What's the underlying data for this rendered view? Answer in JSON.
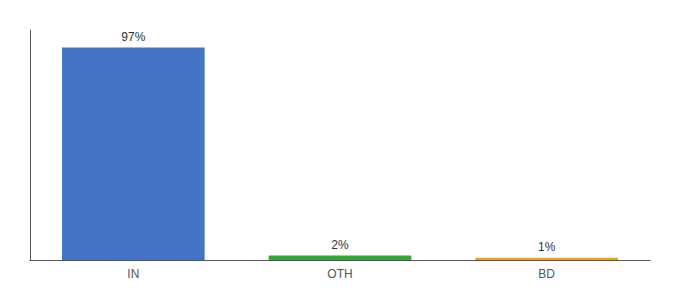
{
  "chart_data": {
    "type": "bar",
    "categories": [
      "IN",
      "OTH",
      "BD"
    ],
    "values": [
      97,
      2,
      1
    ],
    "value_labels": [
      "97%",
      "2%",
      "1%"
    ],
    "colors": [
      "#4472c4",
      "#33aa33",
      "#f0a500"
    ],
    "ylim": [
      0,
      105
    ],
    "grid": false,
    "data_labels": true,
    "tick_labels": "x"
  }
}
